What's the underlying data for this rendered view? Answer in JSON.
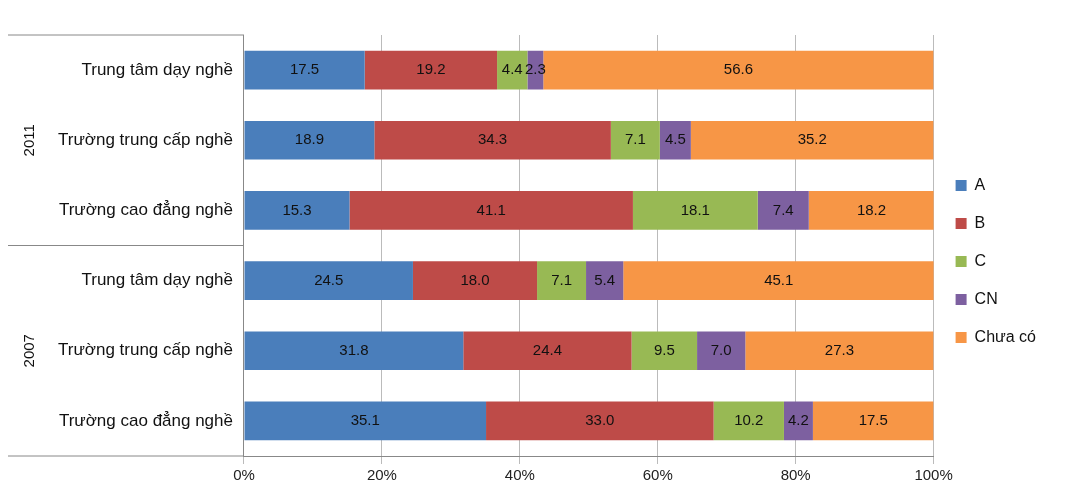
{
  "chart_data": {
    "type": "bar",
    "orientation": "horizontal",
    "stacked": true,
    "categories": [
      "Trung tâm dạy nghề",
      "Trường trung cấp nghề",
      "Trường cao đẳng nghề",
      "Trung tâm dạy nghề",
      "Trường trung cấp nghề",
      "Trường cao đẳng nghề"
    ],
    "annotations": [
      "2011",
      "2007"
    ],
    "series": [
      {
        "name": "A",
        "color": "#4a7ebb",
        "values": [
          17.5,
          18.9,
          15.3,
          24.5,
          31.8,
          35.1
        ],
        "value_labels": [
          "17.5",
          "18.9",
          "15.3",
          "24.5",
          "31.8",
          "35.1"
        ]
      },
      {
        "name": "B",
        "color": "#be4b48",
        "values": [
          19.2,
          34.3,
          41.1,
          18.0,
          24.4,
          33.0
        ],
        "value_labels": [
          "19.2",
          "34.3",
          "41.1",
          "18.0",
          "24.4",
          "33.0"
        ]
      },
      {
        "name": "C",
        "color": "#98b954",
        "values": [
          4.4,
          7.1,
          18.1,
          7.1,
          9.5,
          10.2
        ],
        "value_labels": [
          "4.4",
          "7.1",
          "18.1",
          "7.1",
          "9.5",
          "10.2"
        ]
      },
      {
        "name": "CN",
        "color": "#7d60a0",
        "values": [
          2.3,
          4.5,
          7.4,
          5.4,
          7.0,
          4.2
        ],
        "value_labels": [
          "2.3",
          "4.5",
          "7.4",
          "5.4",
          "7.0",
          "4.2"
        ]
      },
      {
        "name": "Chưa có",
        "color": "#f79646",
        "values": [
          56.6,
          35.2,
          18.2,
          45.1,
          27.3,
          17.5
        ],
        "value_labels": [
          "56.6",
          "35.2",
          "18.2",
          "45.1",
          "27.3",
          "17.5"
        ]
      }
    ],
    "xlim": [
      0,
      100
    ],
    "xticks": [
      {
        "value": 0,
        "label": "0%"
      },
      {
        "value": 20,
        "label": "20%"
      },
      {
        "value": 40,
        "label": "40%"
      },
      {
        "value": 60,
        "label": "60%"
      },
      {
        "value": 80,
        "label": "80%"
      },
      {
        "value": 100,
        "label": "100%"
      }
    ],
    "grid": "x",
    "legend": "right"
  }
}
